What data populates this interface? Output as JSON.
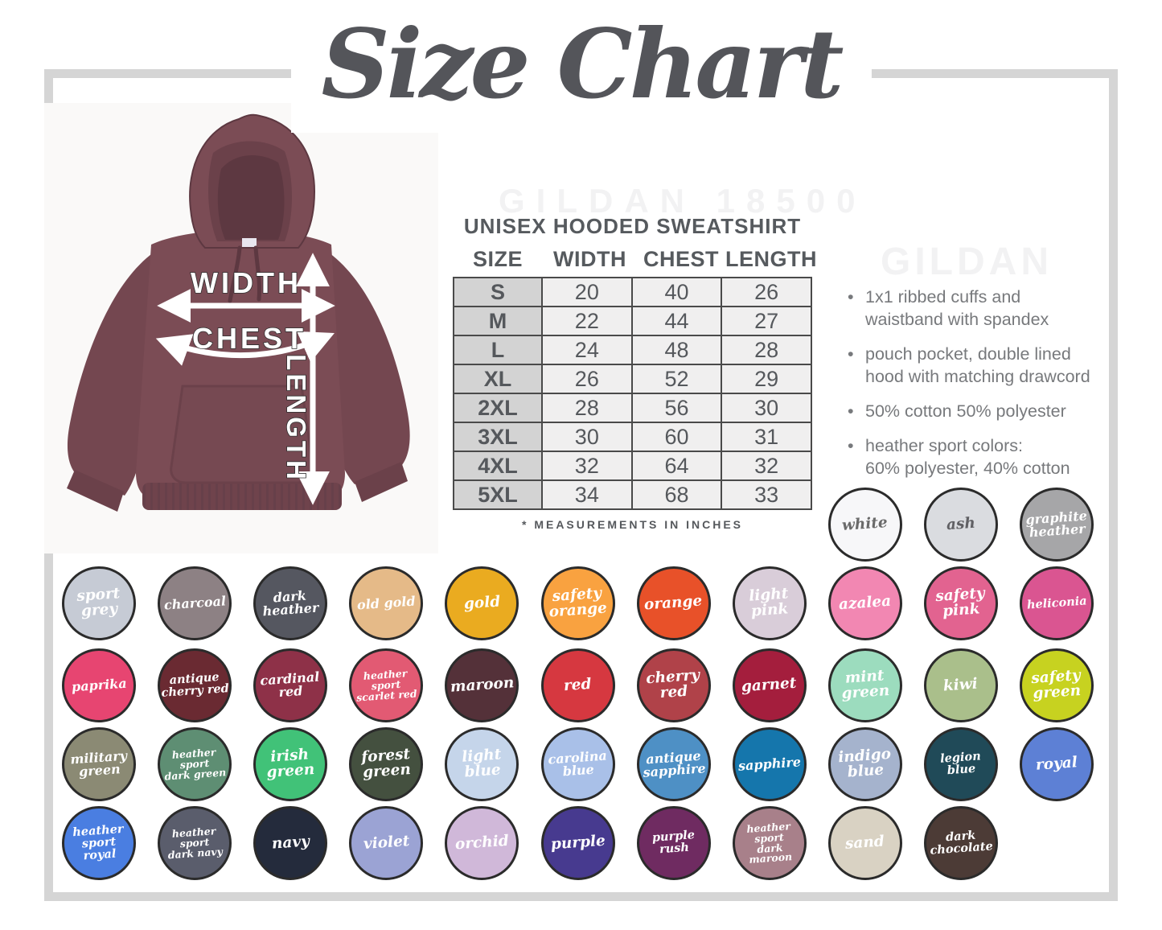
{
  "page": {
    "title": "Size Chart",
    "watermark_top": "GILDAN 18500",
    "watermark_right": "GILDAN"
  },
  "diagram": {
    "width_label": "WIDTH",
    "chest_label": "CHEST",
    "length_label": "LENGTH"
  },
  "size_table": {
    "title": "UNISEX HOODED SWEATSHIRT",
    "columns": [
      "SIZE",
      "WIDTH",
      "CHEST",
      "LENGTH"
    ],
    "rows": [
      {
        "size": "S",
        "width": "20",
        "chest": "40",
        "length": "26"
      },
      {
        "size": "M",
        "width": "22",
        "chest": "44",
        "length": "27"
      },
      {
        "size": "L",
        "width": "24",
        "chest": "48",
        "length": "28"
      },
      {
        "size": "XL",
        "width": "26",
        "chest": "52",
        "length": "29"
      },
      {
        "size": "2XL",
        "width": "28",
        "chest": "56",
        "length": "30"
      },
      {
        "size": "3XL",
        "width": "30",
        "chest": "60",
        "length": "31"
      },
      {
        "size": "4XL",
        "width": "32",
        "chest": "64",
        "length": "32"
      },
      {
        "size": "5XL",
        "width": "34",
        "chest": "68",
        "length": "33"
      }
    ],
    "footnote": "* MEASUREMENTS IN INCHES"
  },
  "features": [
    "1x1 ribbed cuffs and\nwaistband with spandex",
    "pouch pocket, double lined\nhood with matching drawcord",
    "50% cotton 50% polyester",
    "heather sport colors:\n60% polyester, 40% cotton"
  ],
  "colors": {
    "hoodie_maroon": "#7b4c55",
    "frame_gray": "#d5d5d5",
    "text_dark": "#55585c",
    "text_gray": "#77797c"
  },
  "swatches": [
    {
      "name": "white",
      "label": "white",
      "color": "#f7f7f9",
      "text": "#6a6a6a",
      "row": 0,
      "col": 8
    },
    {
      "name": "ash",
      "label": "ash",
      "color": "#dadce0",
      "text": "#606064",
      "row": 0,
      "col": 9
    },
    {
      "name": "graphite-heather",
      "label": "graphite\nheather",
      "color": "#a6a6a8",
      "row": 0,
      "col": 10
    },
    {
      "name": "sport-grey",
      "label": "sport\ngrey",
      "color": "#c6cbd5",
      "row": 1,
      "col": 0
    },
    {
      "name": "charcoal",
      "label": "charcoal",
      "color": "#8d8184",
      "row": 1,
      "col": 1
    },
    {
      "name": "dark-heather",
      "label": "dark\nheather",
      "color": "#555760",
      "row": 1,
      "col": 2
    },
    {
      "name": "old-gold",
      "label": "old gold",
      "color": "#e5ba88",
      "row": 1,
      "col": 3
    },
    {
      "name": "gold",
      "label": "gold",
      "color": "#eaab20",
      "row": 1,
      "col": 4
    },
    {
      "name": "safety-orange",
      "label": "safety\norange",
      "color": "#f9a240",
      "row": 1,
      "col": 5
    },
    {
      "name": "orange",
      "label": "orange",
      "color": "#e85129",
      "row": 1,
      "col": 6
    },
    {
      "name": "light-pink",
      "label": "light\npink",
      "color": "#d9cdd9",
      "row": 1,
      "col": 7
    },
    {
      "name": "azalea",
      "label": "azalea",
      "color": "#f287b2",
      "row": 1,
      "col": 8
    },
    {
      "name": "safety-pink",
      "label": "safety\npink",
      "color": "#e26390",
      "row": 1,
      "col": 9
    },
    {
      "name": "heliconia",
      "label": "heliconia",
      "color": "#da5591",
      "row": 1,
      "col": 10
    },
    {
      "name": "paprika",
      "label": "paprika",
      "color": "#e74571",
      "row": 2,
      "col": 0
    },
    {
      "name": "antique-cherry-red",
      "label": "antique\ncherry red",
      "color": "#6a2a32",
      "row": 2,
      "col": 1
    },
    {
      "name": "cardinal-red",
      "label": "cardinal\nred",
      "color": "#8e3148",
      "row": 2,
      "col": 2
    },
    {
      "name": "heather-sport-scarlet-red",
      "label": "heather sport\nscarlet red",
      "color": "#e25a73",
      "row": 2,
      "col": 3
    },
    {
      "name": "maroon",
      "label": "maroon",
      "color": "#543139",
      "row": 2,
      "col": 4
    },
    {
      "name": "red",
      "label": "red",
      "color": "#d63840",
      "row": 2,
      "col": 5
    },
    {
      "name": "cherry-red",
      "label": "cherry\nred",
      "color": "#b04249",
      "row": 2,
      "col": 6
    },
    {
      "name": "garnet",
      "label": "garnet",
      "color": "#a41e3d",
      "row": 2,
      "col": 7
    },
    {
      "name": "mint-green",
      "label": "mint\ngreen",
      "color": "#9cdcbe",
      "row": 2,
      "col": 8
    },
    {
      "name": "kiwi",
      "label": "kiwi",
      "color": "#aabf8b",
      "row": 2,
      "col": 9
    },
    {
      "name": "safety-green",
      "label": "safety\ngreen",
      "color": "#c7d220",
      "row": 2,
      "col": 10
    },
    {
      "name": "military-green",
      "label": "military\ngreen",
      "color": "#8b8a74",
      "row": 3,
      "col": 0
    },
    {
      "name": "heather-sport-dark-green",
      "label": "heather sport\ndark green",
      "color": "#5e8e73",
      "row": 3,
      "col": 1
    },
    {
      "name": "irish-green",
      "label": "irish\ngreen",
      "color": "#41c278",
      "row": 3,
      "col": 2
    },
    {
      "name": "forest-green",
      "label": "forest\ngreen",
      "color": "#44503f",
      "row": 3,
      "col": 3
    },
    {
      "name": "light-blue",
      "label": "light\nblue",
      "color": "#c5d5ea",
      "row": 3,
      "col": 4
    },
    {
      "name": "carolina-blue",
      "label": "carolina\nblue",
      "color": "#a9c0e8",
      "row": 3,
      "col": 5
    },
    {
      "name": "antique-sapphire",
      "label": "antique\nsapphire",
      "color": "#4e90c5",
      "row": 3,
      "col": 6
    },
    {
      "name": "sapphire",
      "label": "sapphire",
      "color": "#1576ac",
      "row": 3,
      "col": 7
    },
    {
      "name": "indigo-blue",
      "label": "indigo\nblue",
      "color": "#a5b3cd",
      "row": 3,
      "col": 8
    },
    {
      "name": "legion-blue",
      "label": "legion blue",
      "color": "#204a58",
      "row": 3,
      "col": 9
    },
    {
      "name": "royal",
      "label": "royal",
      "color": "#5d80d5",
      "row": 3,
      "col": 10
    },
    {
      "name": "heather-sport-royal",
      "label": "heather\nsport royal",
      "color": "#4a7ee1",
      "row": 4,
      "col": 0
    },
    {
      "name": "heather-sport-dark-navy",
      "label": "heather sport\ndark navy",
      "color": "#5a5d6c",
      "row": 4,
      "col": 1
    },
    {
      "name": "navy",
      "label": "navy",
      "color": "#242b3c",
      "row": 4,
      "col": 2
    },
    {
      "name": "violet",
      "label": "violet",
      "color": "#9ba3d4",
      "row": 4,
      "col": 3
    },
    {
      "name": "orchid",
      "label": "orchid",
      "color": "#d0b8d9",
      "row": 4,
      "col": 4
    },
    {
      "name": "purple",
      "label": "purple",
      "color": "#473a8f",
      "row": 4,
      "col": 5
    },
    {
      "name": "purple-rush",
      "label": "purple rush",
      "color": "#6f2b61",
      "row": 4,
      "col": 6
    },
    {
      "name": "heather-sport-dark-maroon",
      "label": "heather sport\ndark maroon",
      "color": "#a8808a",
      "row": 4,
      "col": 7
    },
    {
      "name": "sand",
      "label": "sand",
      "color": "#d9d2c3",
      "row": 4,
      "col": 8
    },
    {
      "name": "dark-chocolate",
      "label": "dark\nchocolate",
      "color": "#4c3b36",
      "row": 4,
      "col": 9
    }
  ]
}
